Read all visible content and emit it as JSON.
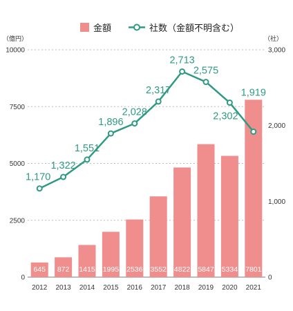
{
  "chart_data": {
    "type": "bar+line",
    "categories": [
      "2012",
      "2013",
      "2014",
      "2015",
      "2016",
      "2017",
      "2018",
      "2019",
      "2020",
      "2021"
    ],
    "series": [
      {
        "name": "金額",
        "type": "bar",
        "axis": "left",
        "color": "#f08e8e",
        "values": [
          645,
          872,
          1415,
          1995,
          2536,
          3552,
          4822,
          5847,
          5334,
          7801
        ]
      },
      {
        "name": "社数（金額不明含む）",
        "type": "line",
        "axis": "right",
        "color": "#2f9a83",
        "values": [
          1170,
          1322,
          1551,
          1896,
          2028,
          2317,
          2713,
          2575,
          2302,
          1919
        ],
        "labels": [
          "1,170",
          "1,322",
          "1,551",
          "1,896",
          "2,028",
          "2,317",
          "2,713",
          "2,575",
          "2,302",
          "1,919"
        ]
      }
    ],
    "left_axis": {
      "unit_label": "（億円）",
      "ylim": [
        0,
        10000
      ],
      "ticks": [
        0,
        2500,
        5000,
        7500,
        10000
      ],
      "tick_labels": [
        "0",
        "2500",
        "5000",
        "7500",
        "10000"
      ]
    },
    "right_axis": {
      "unit_label": "（社）",
      "ylim": [
        0,
        3000
      ],
      "ticks": [
        0,
        1000,
        2000,
        3000
      ],
      "tick_labels": [
        "0",
        "1,000",
        "2,000",
        "3,000"
      ]
    },
    "grid": true,
    "legend_position": "top-center"
  }
}
